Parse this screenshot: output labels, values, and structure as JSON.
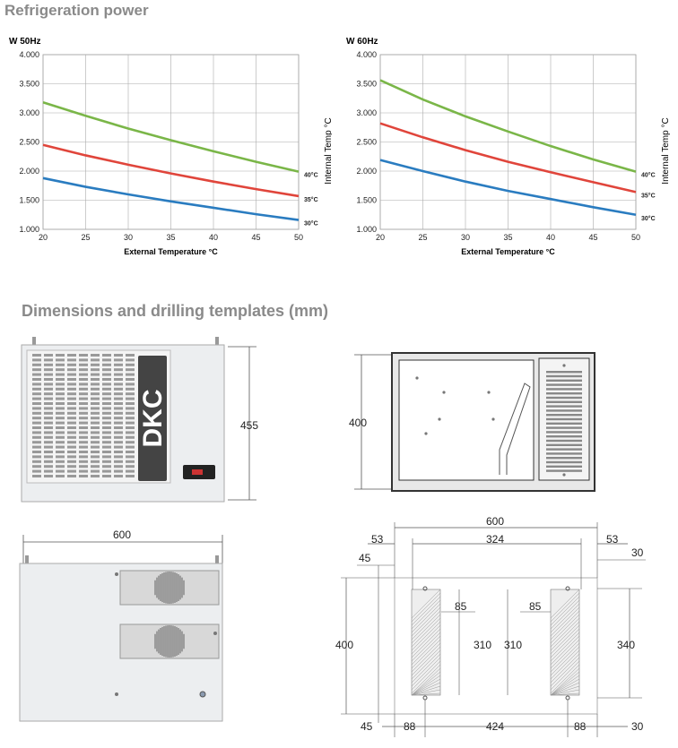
{
  "headings": {
    "refrigeration": "Refrigeration power",
    "dimensions": "Dimensions and drilling templates (mm)"
  },
  "chart_data": [
    {
      "type": "line",
      "title": "W 50Hz",
      "xlabel": "External Temperature °C",
      "ylabel": "",
      "x": [
        20,
        25,
        30,
        35,
        40,
        45,
        50
      ],
      "x_ticks": [
        "20",
        "25",
        "30",
        "35",
        "40",
        "45",
        "50"
      ],
      "y_ticks": [
        "1.000",
        "1.500",
        "2.000",
        "2.500",
        "3.000",
        "3.500",
        "4.000"
      ],
      "xlim": [
        20,
        50
      ],
      "ylim": [
        1000,
        4000
      ],
      "grid": true,
      "series": [
        {
          "name": "40°C",
          "color": "#7ab648",
          "values": [
            3180,
            2950,
            2730,
            2530,
            2340,
            2160,
            1990
          ]
        },
        {
          "name": "35°C",
          "color": "#e0453b",
          "values": [
            2450,
            2270,
            2110,
            1960,
            1820,
            1690,
            1570
          ]
        },
        {
          "name": "30°C",
          "color": "#2a7cc0",
          "values": [
            1880,
            1730,
            1600,
            1480,
            1370,
            1260,
            1160
          ]
        }
      ]
    },
    {
      "type": "line",
      "title": "W 60Hz",
      "xlabel": "External Temperature °C",
      "ylabel": "Internal Temp °C",
      "x": [
        20,
        25,
        30,
        35,
        40,
        45,
        50
      ],
      "x_ticks": [
        "20",
        "25",
        "30",
        "35",
        "40",
        "45",
        "50"
      ],
      "y_ticks": [
        "1.000",
        "1.500",
        "2.000",
        "2.500",
        "3.000",
        "3.500",
        "4.000"
      ],
      "xlim": [
        20,
        50
      ],
      "ylim": [
        1000,
        4000
      ],
      "grid": true,
      "series": [
        {
          "name": "40°C",
          "color": "#7ab648",
          "values": [
            3560,
            3230,
            2940,
            2680,
            2430,
            2200,
            1990
          ]
        },
        {
          "name": "35°C",
          "color": "#e0453b",
          "values": [
            2820,
            2580,
            2360,
            2160,
            1980,
            1810,
            1640
          ]
        },
        {
          "name": "30°C",
          "color": "#2a7cc0",
          "values": [
            2190,
            2000,
            1820,
            1660,
            1520,
            1380,
            1250
          ]
        }
      ]
    }
  ],
  "chart1_side_label": "Internal Temp °C",
  "drawing": {
    "logo_text": "DKC",
    "front_height": "455",
    "side_height": "400",
    "top_width": "600",
    "template": {
      "overall_width": "600",
      "left_offset": "53",
      "span_top": "324",
      "right_offset": "53",
      "top_left_margin": "45",
      "top_right_margin": "30",
      "total_height": "400",
      "cutout_width_left": "85",
      "cutout_height_left": "310",
      "cutout_height_right": "310",
      "cutout_width_right": "85",
      "hole_span_right": "340",
      "bottom_left_margin": "45",
      "bottom_left_offset": "88",
      "span_bottom": "424",
      "bottom_right_offset": "88",
      "bottom_right_margin": "30"
    }
  }
}
